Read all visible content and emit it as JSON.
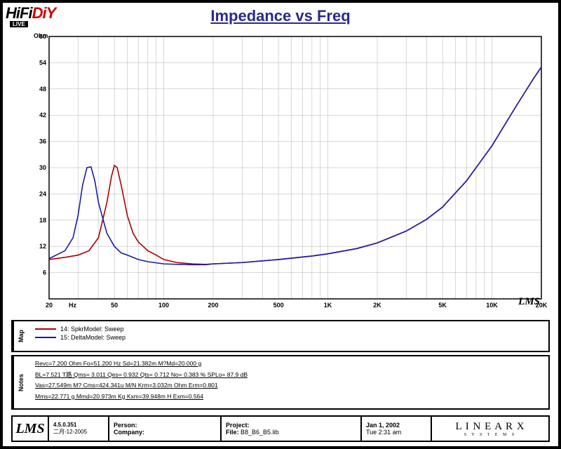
{
  "logo": {
    "h": "HiFi",
    "d": "DiY",
    "sub": "LIVE"
  },
  "title": "Impedance vs Freq",
  "chart": {
    "type": "line",
    "ylabel": "Ohm",
    "xlabel": "Hz",
    "watermark": "LMS",
    "xscale": "log",
    "xlim": [
      20,
      20000
    ],
    "ylim": [
      0,
      60
    ],
    "ytick_step": 6,
    "yticks": [
      6,
      12,
      18,
      24,
      30,
      36,
      42,
      48,
      54,
      60
    ],
    "xticks": [
      20,
      50,
      100,
      200,
      500,
      1000,
      2000,
      5000,
      10000,
      20000
    ],
    "xtick_labels": [
      "20",
      "50",
      "100",
      "200",
      "500",
      "1K",
      "2K",
      "5K",
      "10K",
      "20K"
    ],
    "background_color": "#ffffff",
    "grid_color": "#b0b0b0",
    "grid_width": 0.5,
    "line_width": 1.6,
    "label_fontsize": 9,
    "tick_fontsize": 9,
    "series": [
      {
        "name": "14: SpkrModel: Sweep",
        "color": "#aa0000",
        "hz": [
          20,
          25,
          30,
          35,
          40,
          45,
          48,
          50,
          52,
          55,
          60,
          65,
          70,
          80,
          90,
          100,
          120,
          150,
          180,
          200,
          300,
          500,
          800,
          1000,
          1500,
          2000,
          3000,
          4000,
          5000,
          7000,
          10000,
          14000,
          18000,
          20000
        ],
        "ohm": [
          9,
          9.5,
          10,
          11,
          14,
          22,
          28,
          30.5,
          30,
          26,
          19,
          15,
          13,
          11,
          10,
          9,
          8.3,
          8,
          7.9,
          8,
          8.3,
          9,
          9.8,
          10.3,
          11.5,
          12.8,
          15.5,
          18.2,
          21,
          27,
          35,
          44,
          50.5,
          53
        ]
      },
      {
        "name": "15: DeltaModel: Sweep",
        "color": "#1a1aaa",
        "hz": [
          20,
          25,
          28,
          30,
          32,
          34,
          36,
          38,
          40,
          45,
          50,
          55,
          60,
          70,
          80,
          100,
          120,
          150,
          180,
          200,
          300,
          500,
          800,
          1000,
          1500,
          2000,
          3000,
          4000,
          5000,
          7000,
          10000,
          14000,
          18000,
          20000
        ],
        "ohm": [
          9.2,
          11,
          14,
          19,
          26,
          30,
          30.2,
          27,
          22,
          15,
          12,
          10.5,
          10,
          9,
          8.5,
          8,
          7.9,
          7.8,
          7.8,
          8,
          8.3,
          9,
          9.8,
          10.3,
          11.5,
          12.8,
          15.5,
          18.2,
          21,
          27,
          35,
          44,
          50.5,
          53
        ]
      }
    ]
  },
  "legend": {
    "tab": "Map",
    "items": [
      {
        "color": "#aa0000",
        "label": "14: SpkrModel: Sweep"
      },
      {
        "color": "#1a1aaa",
        "label": "15: DeltaModel: Sweep"
      }
    ]
  },
  "notes": {
    "tab": "Notes",
    "lines": [
      "Revc=7.200 Ohm  Fo=51.200 Hz  Sd=21.382m M?Md=20.000 g",
      "BL=7.521 T路  Qms= 3.011  Qes= 0.932  Qts= 0.712  No= 0.383 %  SPLo= 87.9 dB",
      "Vas=27.549m M? Cms=424.341u M/N  Krm=3.032m Ohm  Erm=0.801",
      "Mms=22.771 g  Mmd=20.973m Kg  Kxm=39.948m H  Exm=0.564"
    ]
  },
  "footer": {
    "lms": "LMS",
    "version_line1": "4.5.0.351",
    "version_line2": "二月-12-2005",
    "person_label": "Person:",
    "person_value": "",
    "company_label": "Company:",
    "company_value": "",
    "project_label": "Project:",
    "project_line2_label": "File:",
    "project_line2_value": "B8_B6_B5.lib",
    "date_line1": "Jan  1, 2002",
    "date_line2": "Tue  2:31 am",
    "brand": "L I N E A R X",
    "brand_sub": "S  Y  S  T  E  M  S"
  }
}
